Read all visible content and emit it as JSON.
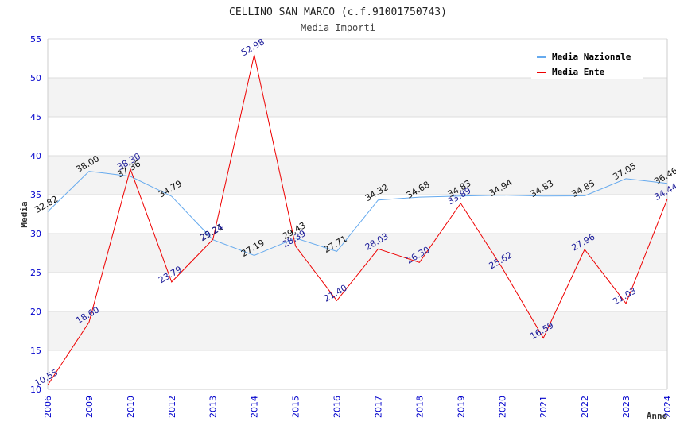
{
  "chart_data": {
    "type": "line",
    "title": "CELLINO SAN MARCO (c.f.91001750743)",
    "subtitle": "Media Importi",
    "xlabel": "Anno",
    "ylabel": "Media",
    "ylim": [
      10,
      55
    ],
    "yticks": [
      10,
      15,
      20,
      25,
      30,
      35,
      40,
      45,
      50,
      55
    ],
    "ytick_labels": [
      "10",
      "15",
      "20",
      "25",
      "30",
      "35",
      "40",
      "45",
      "50",
      "55"
    ],
    "grid": true,
    "legend_position": "top-right",
    "categories": [
      "2006",
      "2009",
      "2010",
      "2012",
      "2013",
      "2014",
      "2015",
      "2016",
      "2017",
      "2018",
      "2019",
      "2020",
      "2021",
      "2022",
      "2023",
      "2024"
    ],
    "series": [
      {
        "name": "Media Nazionale",
        "color": "#66aaee",
        "values": [
          32.82,
          38.0,
          37.36,
          34.79,
          29.21,
          27.19,
          29.43,
          27.71,
          34.32,
          34.68,
          34.83,
          34.94,
          34.83,
          34.85,
          37.05,
          36.46
        ],
        "labels": [
          "32.82",
          "38.00",
          "37.36",
          "34.79",
          "29.21",
          "27.19",
          "29.43",
          "27.71",
          "34.32",
          "34.68",
          "34.83",
          "34.94",
          "34.83",
          "34.85",
          "37.05",
          "36.46"
        ]
      },
      {
        "name": "Media Ente",
        "color": "#ee0000",
        "values": [
          10.55,
          18.6,
          38.3,
          23.79,
          29.24,
          52.98,
          28.39,
          21.4,
          28.03,
          26.3,
          33.89,
          25.62,
          16.59,
          27.96,
          21.03,
          34.44
        ],
        "labels": [
          "10.55",
          "18.60",
          "38.30",
          "23.79",
          "29.24",
          "52.98",
          "28.39",
          "21.40",
          "28.03",
          "26.30",
          "33.89",
          "25.62",
          "16.59",
          "27.96",
          "21.03",
          "34.44"
        ]
      }
    ]
  }
}
